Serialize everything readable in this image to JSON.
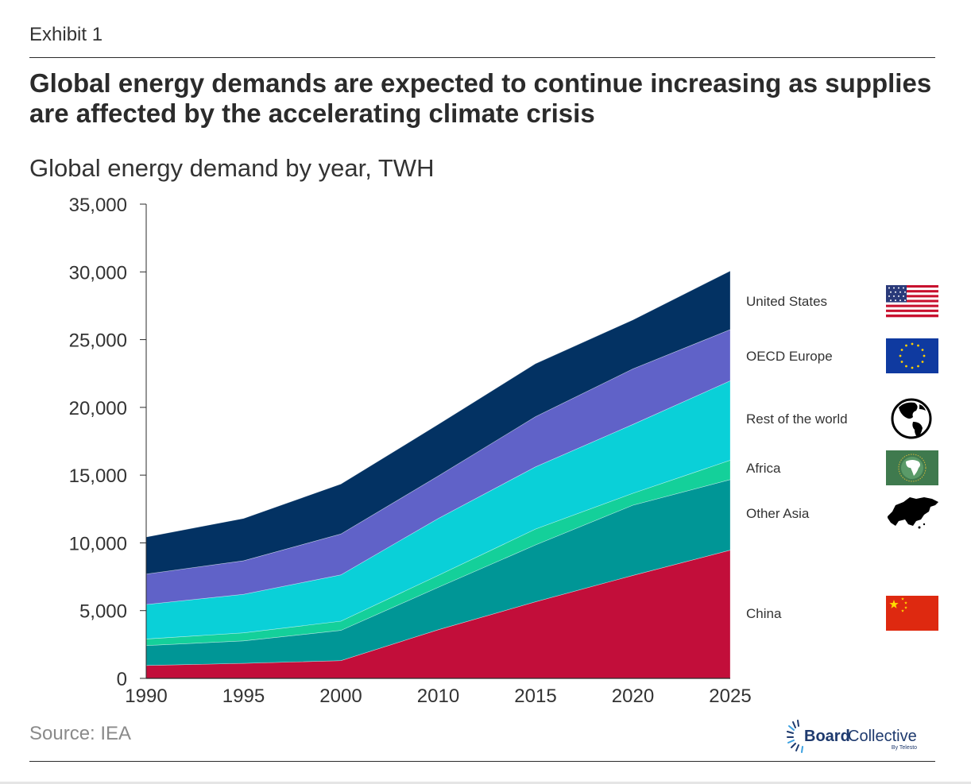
{
  "header": {
    "exhibit": "Exhibit 1",
    "title": "Global energy demands are expected to continue increasing as supplies are affected by the accelerating climate crisis"
  },
  "footer": {
    "source": "Source: IEA",
    "logo_main_bold": "Board",
    "logo_main_light": "Collective",
    "logo_sub": "By Telesto"
  },
  "chart_data": {
    "type": "area",
    "stacked": true,
    "title": "Global energy demand by year, TWH",
    "xlabel": "",
    "ylabel": "",
    "categories": [
      "1990",
      "1995",
      "2000",
      "2010",
      "2015",
      "2020",
      "2025"
    ],
    "ylim": [
      0,
      35000
    ],
    "yticks": [
      0,
      5000,
      10000,
      15000,
      20000,
      25000,
      30000,
      35000
    ],
    "ytick_labels": [
      "0",
      "5,000",
      "10,000",
      "15,000",
      "20,000",
      "25,000",
      "30,000",
      "35,000"
    ],
    "grid": false,
    "legend_position": "right",
    "series": [
      {
        "name": "China",
        "color": "#c20e3a",
        "icon": "china-flag-icon",
        "values": [
          950,
          1110,
          1310,
          3590,
          5650,
          7600,
          9460
        ]
      },
      {
        "name": "Other Asia",
        "color": "#009696",
        "icon": "asia-map-icon",
        "values": [
          1470,
          1660,
          2230,
          3130,
          4200,
          5180,
          5210
        ]
      },
      {
        "name": "Africa",
        "color": "#14d09a",
        "icon": "african-union-flag-icon",
        "values": [
          490,
          590,
          680,
          880,
          1170,
          880,
          1430
        ]
      },
      {
        "name": "Rest of the world",
        "color": "#0ad0d8",
        "icon": "globe-icon",
        "values": [
          2540,
          2840,
          3420,
          4200,
          4590,
          5080,
          5860
        ]
      },
      {
        "name": "OECD Europe",
        "color": "#6062c8",
        "icon": "eu-flag-icon",
        "values": [
          2250,
          2480,
          3020,
          3130,
          3710,
          4100,
          3780
        ]
      },
      {
        "name": "United States",
        "color": "#033263",
        "icon": "us-flag-icon",
        "values": [
          2730,
          3120,
          3680,
          3810,
          3910,
          3620,
          4330
        ]
      }
    ]
  }
}
